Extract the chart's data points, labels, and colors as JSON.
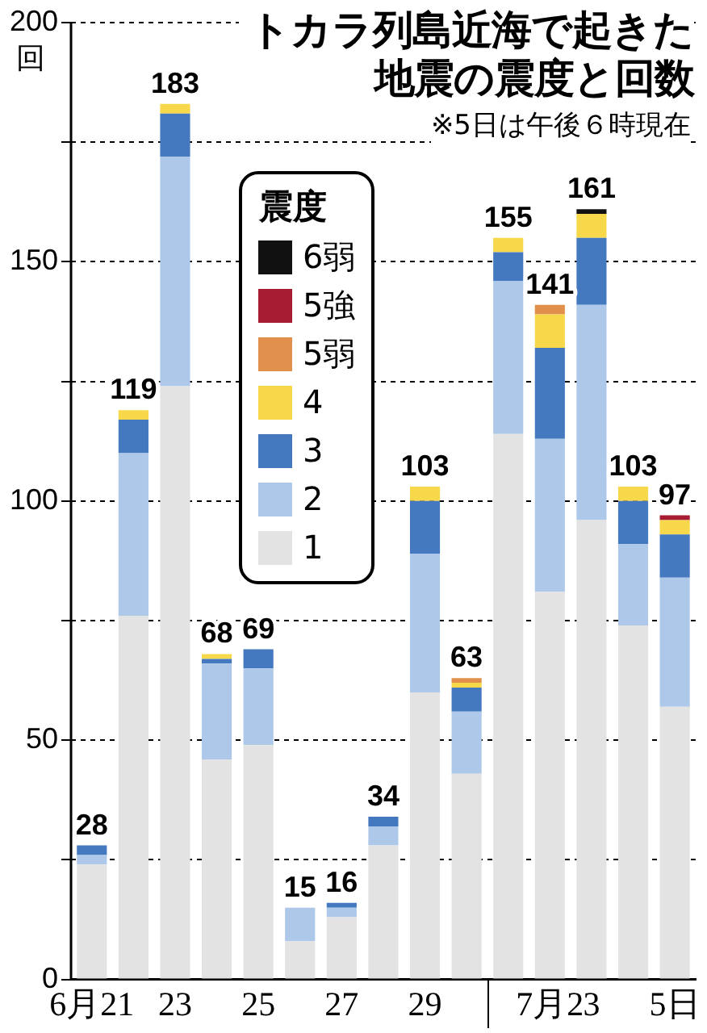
{
  "chart_data": {
    "type": "bar",
    "title": "トカラ列島近海で起きた地震の震度と回数",
    "subtitle": "※5日は午後６時現在",
    "ylabel": "回",
    "legend_title": "震度",
    "stacked": true,
    "grid": "y",
    "legend": "top",
    "categories": [
      "6月21",
      null,
      "23",
      null,
      "25",
      null,
      "27",
      null,
      "29",
      null,
      null,
      "7月2",
      "3",
      null,
      "5日"
    ],
    "ylim": [
      0,
      200
    ],
    "yticks": [
      0,
      {
        "value": 25,
        "label": null
      },
      50,
      {
        "value": 75,
        "label": null
      },
      100,
      {
        "value": 125,
        "label": null
      },
      150,
      {
        "value": 175,
        "label": null
      },
      200
    ],
    "series": [
      {
        "name": "1",
        "color": "#e3e3e3",
        "values": [
          24,
          76,
          124,
          46,
          49,
          8,
          13,
          28,
          60,
          43,
          114,
          81,
          96,
          74,
          57
        ]
      },
      {
        "name": "2",
        "color": "#adc8e8",
        "values": [
          2,
          34,
          48,
          20,
          16,
          7,
          2,
          4,
          29,
          13,
          32,
          32,
          45,
          17,
          27
        ]
      },
      {
        "name": "3",
        "color": "#4479bf",
        "values": [
          2,
          7,
          9,
          1,
          4,
          0,
          1,
          2,
          11,
          5,
          6,
          19,
          14,
          9,
          9
        ]
      },
      {
        "name": "4",
        "color": "#f7d84a",
        "values": [
          0,
          2,
          2,
          1,
          0,
          0,
          0,
          0,
          3,
          1,
          3,
          7,
          5,
          3,
          3
        ]
      },
      {
        "name": "5弱",
        "color": "#e0904a",
        "values": [
          0,
          0,
          0,
          0,
          0,
          0,
          0,
          0,
          0,
          1,
          0,
          2,
          0,
          0,
          0
        ]
      },
      {
        "name": "5強",
        "color": "#a51c33",
        "values": [
          0,
          0,
          0,
          0,
          0,
          0,
          0,
          0,
          0,
          0,
          0,
          0,
          0,
          0,
          1
        ]
      },
      {
        "name": "6弱",
        "color": "#111111",
        "values": [
          0,
          0,
          0,
          0,
          0,
          0,
          0,
          0,
          0,
          0,
          0,
          0,
          1,
          0,
          0
        ]
      }
    ],
    "totals": [
      "28",
      "119",
      "183",
      "68",
      "69",
      "15",
      "16",
      "34",
      "103",
      "63",
      "155",
      "141",
      "161",
      "103",
      "97"
    ]
  }
}
